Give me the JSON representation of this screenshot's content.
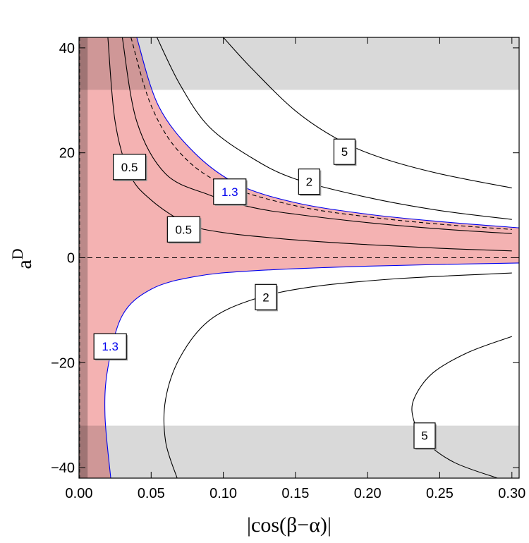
{
  "chart_data": {
    "type": "contour",
    "xlabel": "|cos(β−α)|",
    "ylabel": "a",
    "ylabel_superscript": "D",
    "xlim": [
      0.0,
      0.305
    ],
    "ylim": [
      -42,
      42
    ],
    "xticks": [
      0.0,
      0.05,
      0.1,
      0.15,
      0.2,
      0.25,
      0.3
    ],
    "xtick_labels": [
      "0.00",
      "0.05",
      "0.10",
      "0.15",
      "0.20",
      "0.25",
      "0.30"
    ],
    "yticks": [
      -40,
      -20,
      0,
      20,
      40
    ],
    "ytick_labels": [
      "−40",
      "−20",
      "0",
      "20",
      "40"
    ],
    "colors": {
      "allowed_region": "#f4b2b2",
      "excluded_band": "#d9d9d9",
      "overlap": "#d49292",
      "boundary": "#0000ee",
      "contour": "#000000"
    },
    "excluded_bands": [
      {
        "y_from": 32,
        "y_to": 42
      },
      {
        "y_from": -42,
        "y_to": -32
      }
    ],
    "shaded_strip": {
      "x_from": 0.0,
      "x_to": 0.006
    },
    "reference_lines": [
      {
        "orientation": "horizontal",
        "value": 0,
        "style": "dashed"
      },
      {
        "orientation": "vertical",
        "value": 0.0005,
        "style": "dashed"
      }
    ],
    "series": [
      {
        "name": "contour 0.5 (outer)",
        "level": "0.5",
        "style": "solid",
        "color": "#000000",
        "points": [
          [
            0.03,
            42
          ],
          [
            0.04,
            26
          ],
          [
            0.06,
            16
          ],
          [
            0.09,
            12
          ],
          [
            0.12,
            9.6
          ],
          [
            0.15,
            8.3
          ],
          [
            0.2,
            6.7
          ],
          [
            0.25,
            5.5
          ],
          [
            0.3,
            4.6
          ]
        ]
      },
      {
        "name": "contour 0.5 (inner)",
        "level": "0.5",
        "style": "solid",
        "color": "#000000",
        "points": [
          [
            0.02,
            42
          ],
          [
            0.025,
            26
          ],
          [
            0.035,
            16
          ],
          [
            0.05,
            11
          ],
          [
            0.075,
            6.5
          ],
          [
            0.1,
            4.8
          ],
          [
            0.15,
            3.4
          ],
          [
            0.2,
            2.5
          ],
          [
            0.25,
            1.8
          ],
          [
            0.3,
            1.3
          ]
        ]
      },
      {
        "name": "dashed contour",
        "level": "",
        "style": "dashed",
        "color": "#000000",
        "points": [
          [
            0.036,
            42
          ],
          [
            0.05,
            29
          ],
          [
            0.07,
            20
          ],
          [
            0.1,
            14
          ],
          [
            0.15,
            9.9
          ],
          [
            0.2,
            7.8
          ],
          [
            0.25,
            6.4
          ],
          [
            0.3,
            5.4
          ]
        ]
      },
      {
        "name": "boundary 1.3 (upper)",
        "level": "1.3",
        "style": "solid",
        "color": "#0000ee",
        "points": [
          [
            0.04,
            42
          ],
          [
            0.055,
            29
          ],
          [
            0.08,
            20
          ],
          [
            0.11,
            14
          ],
          [
            0.15,
            10.5
          ],
          [
            0.2,
            8.3
          ],
          [
            0.25,
            6.9
          ],
          [
            0.305,
            5.7
          ]
        ]
      },
      {
        "name": "boundary 1.3 (lower)",
        "level": "1.3",
        "style": "solid",
        "color": "#0000ee",
        "points": [
          [
            0.022,
            -42
          ],
          [
            0.018,
            -30
          ],
          [
            0.02,
            -21
          ],
          [
            0.03,
            -11
          ],
          [
            0.05,
            -6
          ],
          [
            0.08,
            -3.6
          ],
          [
            0.12,
            -2.5
          ],
          [
            0.2,
            -1.6
          ],
          [
            0.305,
            -1.0
          ]
        ]
      },
      {
        "name": "contour 2 (upper)",
        "level": "2",
        "style": "solid",
        "color": "#000000",
        "points": [
          [
            0.054,
            42
          ],
          [
            0.07,
            33
          ],
          [
            0.09,
            25
          ],
          [
            0.12,
            19
          ],
          [
            0.15,
            15
          ],
          [
            0.2,
            11.5
          ],
          [
            0.25,
            9
          ],
          [
            0.3,
            7.3
          ]
        ]
      },
      {
        "name": "contour 5 (upper)",
        "level": "5",
        "style": "solid",
        "color": "#000000",
        "points": [
          [
            0.1,
            42
          ],
          [
            0.12,
            36
          ],
          [
            0.15,
            28
          ],
          [
            0.18,
            22.5
          ],
          [
            0.21,
            19
          ],
          [
            0.25,
            16
          ],
          [
            0.3,
            13.3
          ]
        ]
      },
      {
        "name": "contour 2 (lower)",
        "level": "2",
        "style": "solid",
        "color": "#000000",
        "points": [
          [
            0.068,
            -42
          ],
          [
            0.06,
            -35
          ],
          [
            0.06,
            -27
          ],
          [
            0.07,
            -19
          ],
          [
            0.09,
            -12
          ],
          [
            0.12,
            -8
          ],
          [
            0.16,
            -5.6
          ],
          [
            0.22,
            -4
          ],
          [
            0.3,
            -2.9
          ]
        ]
      },
      {
        "name": "contour 5 (lower)",
        "level": "5",
        "style": "solid",
        "color": "#000000",
        "points": [
          [
            0.3,
            -15
          ],
          [
            0.27,
            -18
          ],
          [
            0.245,
            -22
          ],
          [
            0.232,
            -27
          ],
          [
            0.232,
            -31
          ],
          [
            0.24,
            -35
          ],
          [
            0.26,
            -39
          ],
          [
            0.29,
            -42
          ]
        ]
      }
    ],
    "contour_labels": [
      {
        "text": "0.5",
        "x": 0.035,
        "y": 17.3,
        "color": "#000000"
      },
      {
        "text": "0.5",
        "x": 0.0725,
        "y": 5.4,
        "color": "#000000"
      },
      {
        "text": "1.3",
        "x": 0.1045,
        "y": 12.6,
        "color": "#0000ee"
      },
      {
        "text": "1.3",
        "x": 0.0216,
        "y": -16.9,
        "color": "#0000ee"
      },
      {
        "text": "2",
        "x": 0.1595,
        "y": 14.5,
        "color": "#000000"
      },
      {
        "text": "2",
        "x": 0.1295,
        "y": -7.5,
        "color": "#000000"
      },
      {
        "text": "5",
        "x": 0.184,
        "y": 20.2,
        "color": "#000000"
      },
      {
        "text": "5",
        "x": 0.2395,
        "y": -33.9,
        "color": "#000000"
      }
    ]
  }
}
